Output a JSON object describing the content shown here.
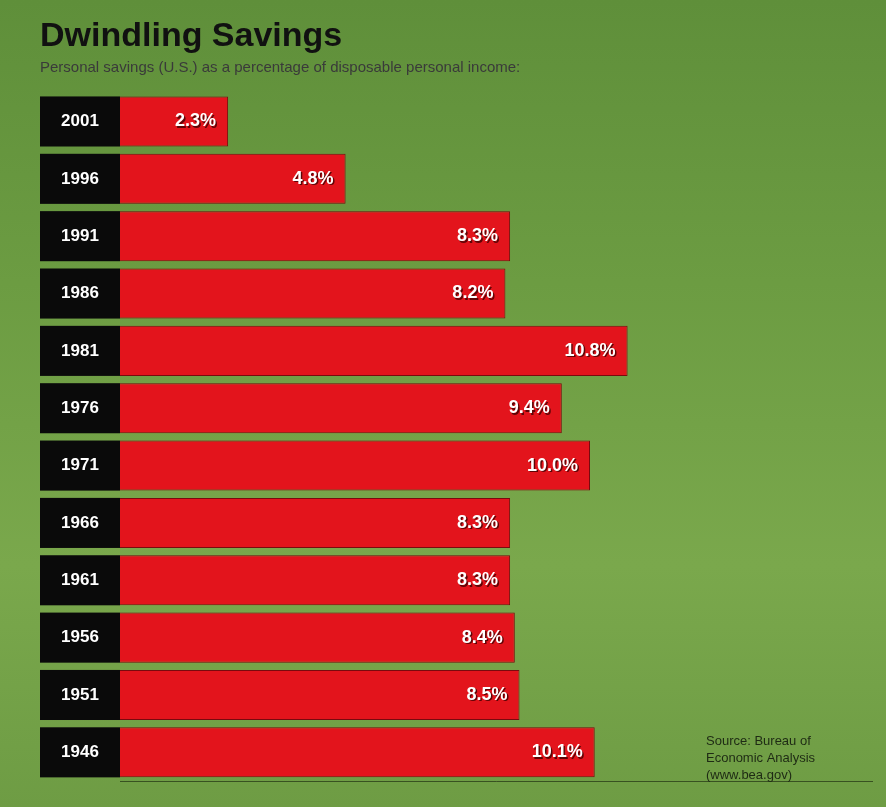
{
  "chart_data": {
    "type": "bar",
    "orientation": "horizontal",
    "title": "Dwindling Savings",
    "subtitle": "Personal savings (U.S.) as a percentage of disposable personal income:",
    "categories": [
      "2001",
      "1996",
      "1991",
      "1986",
      "1981",
      "1976",
      "1971",
      "1966",
      "1961",
      "1956",
      "1951",
      "1946"
    ],
    "values": [
      2.3,
      4.8,
      8.3,
      8.2,
      10.8,
      9.4,
      10.0,
      8.3,
      8.3,
      8.4,
      8.5,
      10.1
    ],
    "value_labels": [
      "2.3%",
      "4.8%",
      "8.3%",
      "8.2%",
      "10.8%",
      "9.4%",
      "10.0%",
      "8.3%",
      "8.3%",
      "8.4%",
      "8.5%",
      "10.1%"
    ],
    "color": "#e3141c",
    "xlim": [
      0,
      16
    ],
    "grid": false,
    "data_labels": true,
    "tick_labels": "y",
    "annotations": [
      "Source: Bureau of",
      "Economic Analysis",
      "(www.bea.gov)"
    ]
  }
}
